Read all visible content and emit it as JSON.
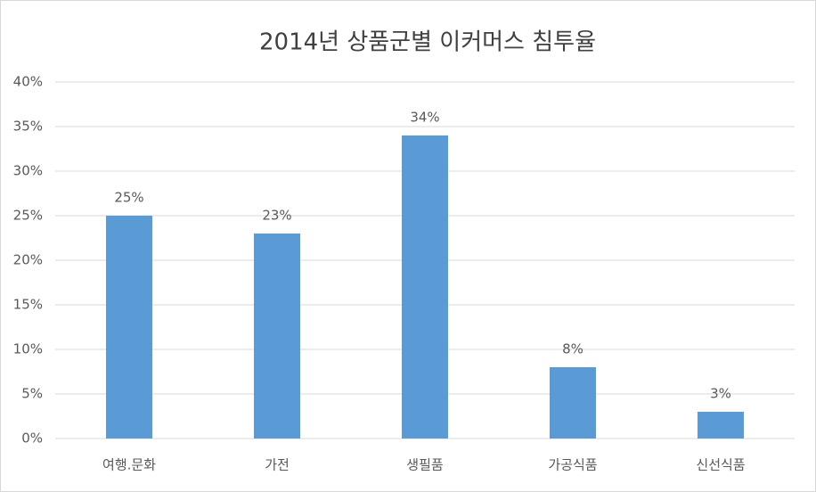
{
  "chart_data": {
    "type": "bar",
    "title": "2014년 상품군별 이커머스 침투율",
    "categories": [
      "여행.문화",
      "가전",
      "생필품",
      "가공식품",
      "신선식품"
    ],
    "values": [
      25,
      23,
      34,
      8,
      3
    ],
    "value_labels": [
      "25%",
      "23%",
      "34%",
      "8%",
      "3%"
    ],
    "color": "#5b9bd5",
    "ylim": [
      0,
      40
    ],
    "yticks": [
      {
        "value": 0,
        "label": "0%"
      },
      {
        "value": 5,
        "label": "5%"
      },
      {
        "value": 10,
        "label": "10%"
      },
      {
        "value": 15,
        "label": "15%"
      },
      {
        "value": 20,
        "label": "20%"
      },
      {
        "value": 25,
        "label": "25%"
      },
      {
        "value": 30,
        "label": "30%"
      },
      {
        "value": 35,
        "label": "35%"
      },
      {
        "value": 40,
        "label": "40%"
      }
    ],
    "grid": true
  }
}
